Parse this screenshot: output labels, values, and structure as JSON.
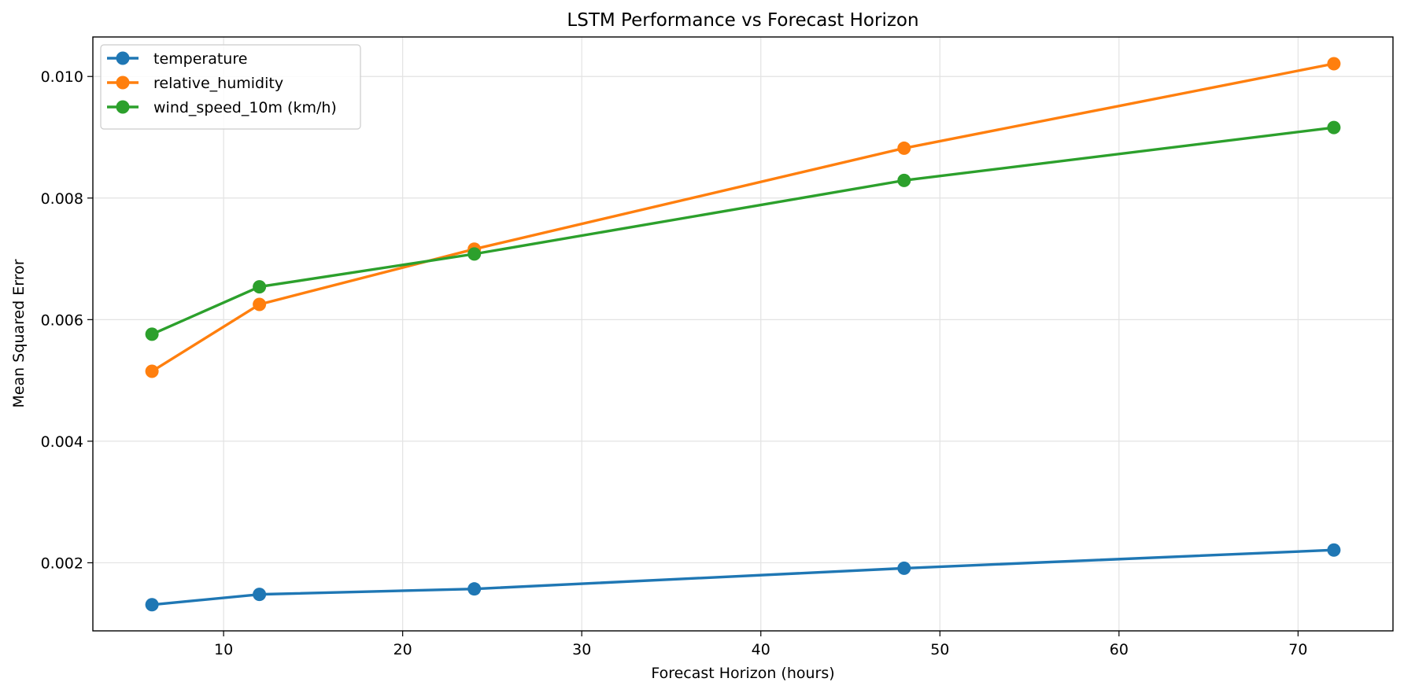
{
  "chart_data": {
    "type": "line",
    "title": "LSTM Performance vs Forecast Horizon",
    "xlabel": "Forecast Horizon (hours)",
    "ylabel": "Mean Squared Error",
    "x": [
      6,
      12,
      24,
      48,
      72
    ],
    "xlim": [
      2.7,
      75.3
    ],
    "ylim": [
      0.00088,
      0.01065
    ],
    "xticks": [
      10,
      20,
      30,
      40,
      50,
      60,
      70
    ],
    "yticks": [
      0.002,
      0.004,
      0.006,
      0.008,
      0.01
    ],
    "ytick_labels": [
      "0.002",
      "0.004",
      "0.006",
      "0.008",
      "0.010"
    ],
    "grid": true,
    "legend_position": "upper-left",
    "series": [
      {
        "name": "temperature",
        "color": "#1f77b4",
        "values": [
          0.00131,
          0.00148,
          0.00157,
          0.00191,
          0.00221
        ]
      },
      {
        "name": "relative_humidity",
        "color": "#ff7f0e",
        "values": [
          0.00515,
          0.00625,
          0.00716,
          0.00882,
          0.01021
        ]
      },
      {
        "name": "wind_speed_10m (km/h)",
        "color": "#2ca02c",
        "values": [
          0.00576,
          0.00654,
          0.00708,
          0.00829,
          0.00916
        ]
      }
    ]
  }
}
